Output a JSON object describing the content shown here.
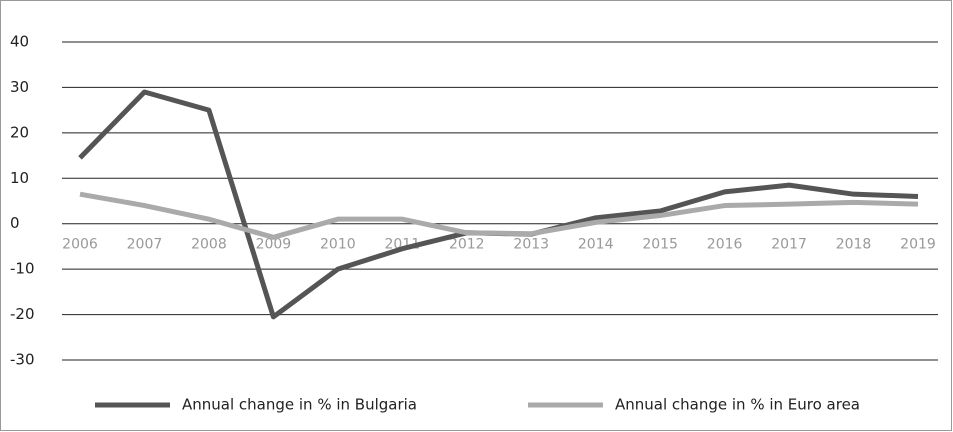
{
  "chart_data": {
    "type": "line",
    "categories": [
      "2006",
      "2007",
      "2008",
      "2009",
      "2010",
      "2011",
      "2012",
      "2013",
      "2014",
      "2015",
      "2016",
      "2017",
      "2018",
      "2019"
    ],
    "series": [
      {
        "name": "Annual change in % in Bulgaria",
        "color": "#555555",
        "values": [
          14.5,
          29,
          25,
          -20.5,
          -10,
          -5.5,
          -2,
          -2.3,
          1.3,
          2.8,
          7,
          8.5,
          6.5,
          6
        ]
      },
      {
        "name": "Annual change in % in Euro area",
        "color": "#aaaaaa",
        "values": [
          6.5,
          4,
          1,
          -3,
          1,
          1,
          -2,
          -2.2,
          0.3,
          1.8,
          4,
          4.3,
          4.7,
          4.3
        ]
      }
    ],
    "ylim": [
      -30,
      40
    ],
    "yticks": [
      -30,
      -20,
      -10,
      0,
      10,
      20,
      30,
      40
    ],
    "grid": true,
    "legend": "bottom"
  }
}
